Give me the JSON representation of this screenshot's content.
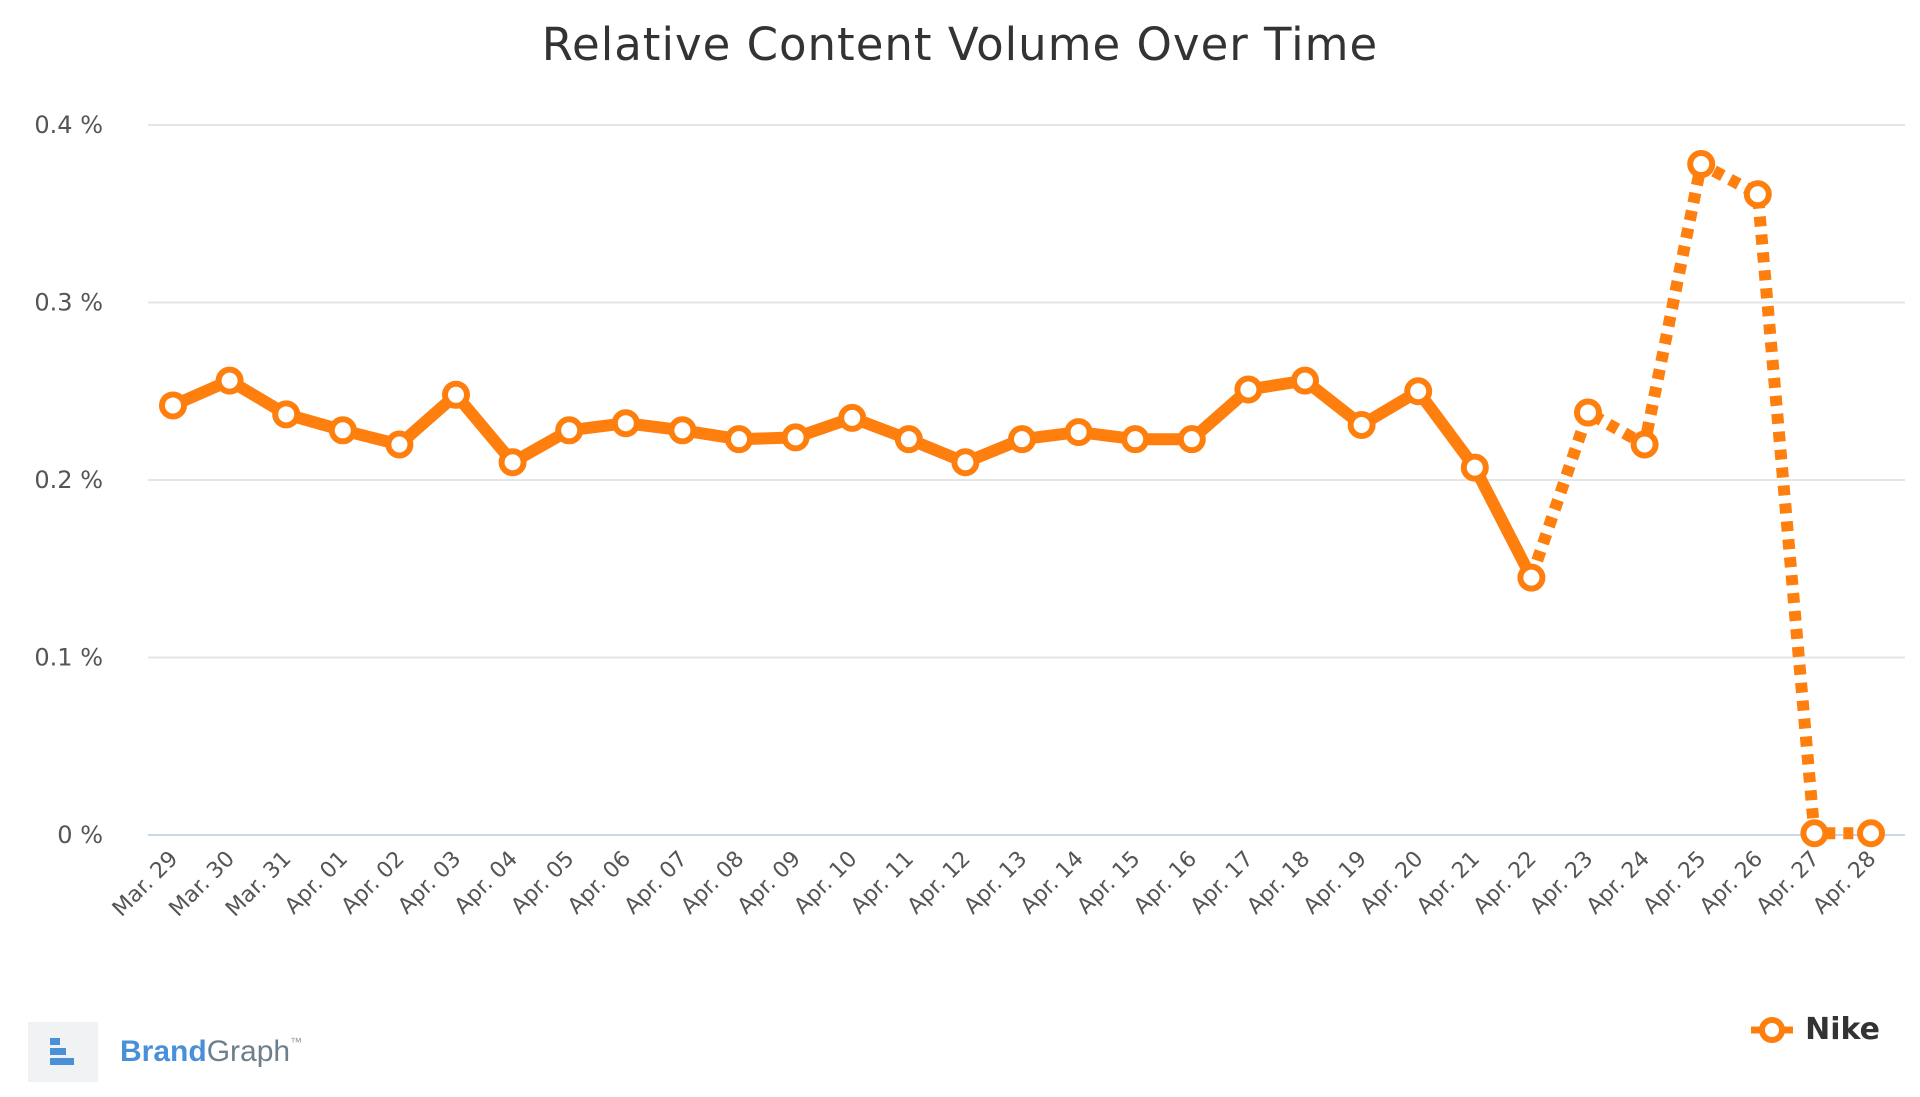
{
  "chart_data": {
    "type": "line",
    "title": "Relative Content Volume Over Time",
    "xlabel": "",
    "ylabel": "",
    "categories": [
      "Mar. 29",
      "Mar. 30",
      "Mar. 31",
      "Apr. 01",
      "Apr. 02",
      "Apr. 03",
      "Apr. 04",
      "Apr. 05",
      "Apr. 06",
      "Apr. 07",
      "Apr. 08",
      "Apr. 09",
      "Apr. 10",
      "Apr. 11",
      "Apr. 12",
      "Apr. 13",
      "Apr. 14",
      "Apr. 15",
      "Apr. 16",
      "Apr. 17",
      "Apr. 18",
      "Apr. 19",
      "Apr. 20",
      "Apr. 21",
      "Apr. 22",
      "Apr. 23",
      "Apr. 24",
      "Apr. 25",
      "Apr. 26",
      "Apr. 27",
      "Apr. 28"
    ],
    "series": [
      {
        "name": "Nike",
        "values": [
          0.242,
          0.256,
          0.237,
          0.228,
          0.22,
          0.248,
          0.21,
          0.228,
          0.232,
          0.228,
          0.223,
          0.224,
          0.235,
          0.223,
          0.21,
          0.223,
          0.227,
          0.223,
          0.223,
          0.251,
          0.256,
          0.231,
          0.25,
          0.207,
          0.145,
          0.238,
          0.22,
          0.378,
          0.361,
          0.001,
          0.001
        ],
        "dashed_from_category": "Apr. 22",
        "color": "#ff7f0e"
      }
    ],
    "yticks": [
      "0 %",
      "0.1 %",
      "0.2 %",
      "0.3 %",
      "0.4 %"
    ],
    "ylim": [
      0,
      0.4
    ],
    "grid": true,
    "legend": "bottom-right"
  },
  "branding": {
    "brand_part": "Brand",
    "graph_part": "Graph",
    "tm": "™"
  },
  "colors": {
    "series": "#ff7f0e",
    "grid": "#e6e6e6",
    "baseline": "#ccd6eb"
  }
}
